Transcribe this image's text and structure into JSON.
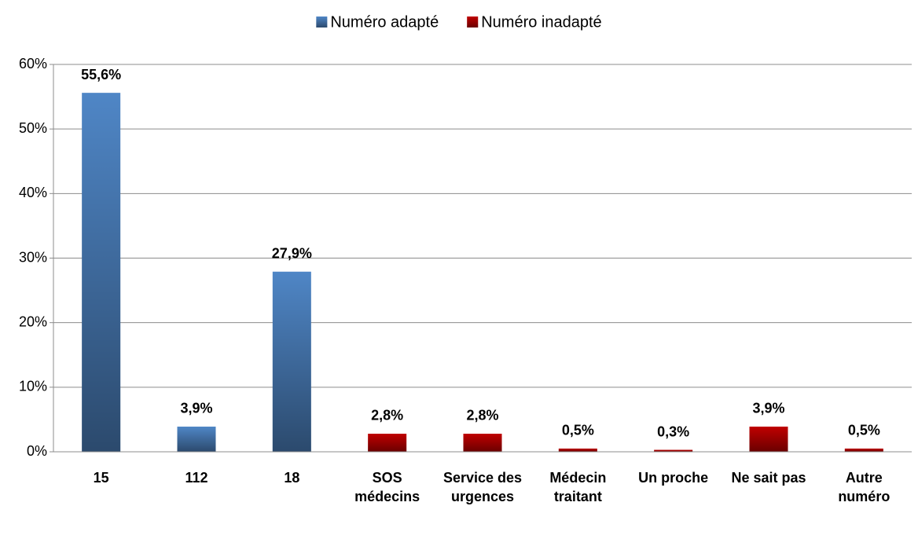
{
  "chart_data": {
    "type": "bar",
    "categories": [
      "15",
      "112",
      "18",
      "SOS médecins",
      "Service des urgences",
      "Médecin traitant",
      "Un proche",
      "Ne sait pas",
      "Autre numéro"
    ],
    "series": [
      {
        "name": "Numéro adapté",
        "color": "#4f86c6",
        "values": [
          55.6,
          3.9,
          27.9,
          null,
          null,
          null,
          null,
          null,
          null
        ],
        "value_labels": [
          "55,6%",
          "3,9%",
          "27,9%",
          null,
          null,
          null,
          null,
          null,
          null
        ]
      },
      {
        "name": "Numéro inadapté",
        "color": "#c00000",
        "values": [
          null,
          null,
          null,
          2.8,
          2.8,
          0.5,
          0.3,
          3.9,
          0.5
        ],
        "value_labels": [
          null,
          null,
          null,
          "2,8%",
          "2,8%",
          "0,5%",
          "0,3%",
          "3,9%",
          "0,5%"
        ]
      }
    ],
    "ylim": [
      0,
      60
    ],
    "yticks": [
      {
        "value": 0,
        "label": "0%"
      },
      {
        "value": 10,
        "label": "10%"
      },
      {
        "value": 20,
        "label": "20%"
      },
      {
        "value": 30,
        "label": "30%"
      },
      {
        "value": 40,
        "label": "40%"
      },
      {
        "value": 50,
        "label": "50%"
      },
      {
        "value": 60,
        "label": "60%"
      }
    ],
    "grid": true,
    "legend": "top"
  }
}
